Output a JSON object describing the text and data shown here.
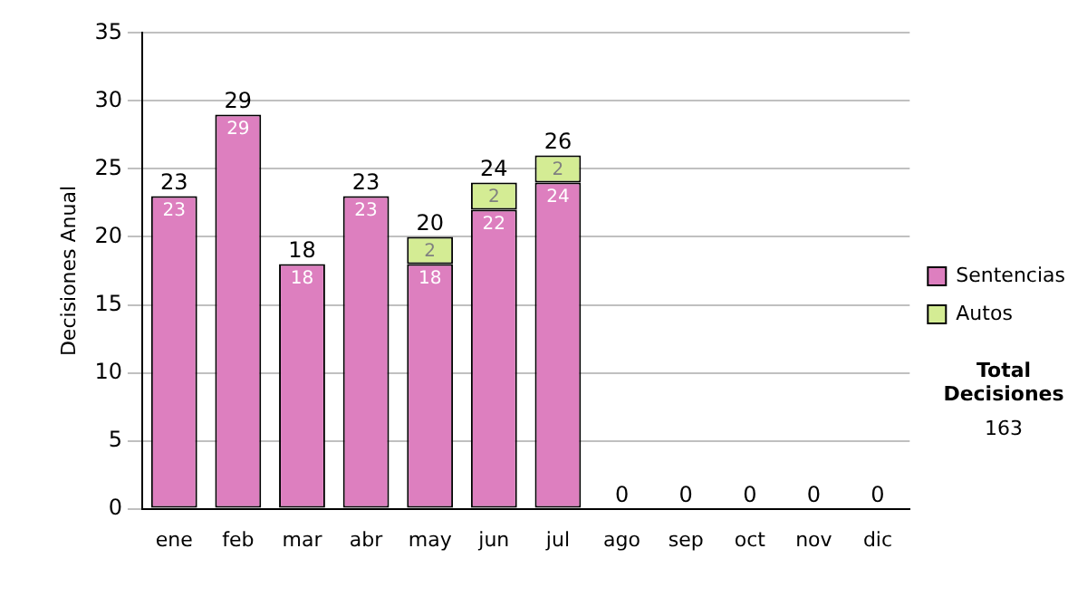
{
  "chart_data": {
    "type": "bar",
    "stacked": true,
    "ylabel": "Decisiones Anual",
    "categories": [
      "ene",
      "feb",
      "mar",
      "abr",
      "may",
      "jun",
      "jul",
      "ago",
      "sep",
      "oct",
      "nov",
      "dic"
    ],
    "series": [
      {
        "name": "Sentencias",
        "color": "#dd7fbf",
        "values": [
          23,
          29,
          18,
          23,
          18,
          22,
          24,
          0,
          0,
          0,
          0,
          0
        ],
        "value_labels": [
          "23",
          "29",
          "18",
          "23",
          "18",
          "22",
          "24",
          null,
          null,
          null,
          null,
          null
        ]
      },
      {
        "name": "Autos",
        "color": "#d4ec94",
        "values": [
          0,
          0,
          0,
          0,
          2,
          2,
          2,
          0,
          0,
          0,
          0,
          0
        ],
        "value_labels": [
          null,
          null,
          null,
          null,
          "2",
          "2",
          "2",
          null,
          null,
          null,
          null,
          null
        ]
      }
    ],
    "totals": [
      "23",
      "29",
      "18",
      "23",
      "20",
      "24",
      "26",
      "0",
      "0",
      "0",
      "0",
      "0"
    ],
    "ylim": [
      0,
      35
    ],
    "yticks": [
      0,
      5,
      10,
      15,
      20,
      25,
      30,
      35
    ],
    "grid": "y",
    "legend": "right",
    "annotations": [
      "Total Decisiones",
      "163"
    ]
  }
}
